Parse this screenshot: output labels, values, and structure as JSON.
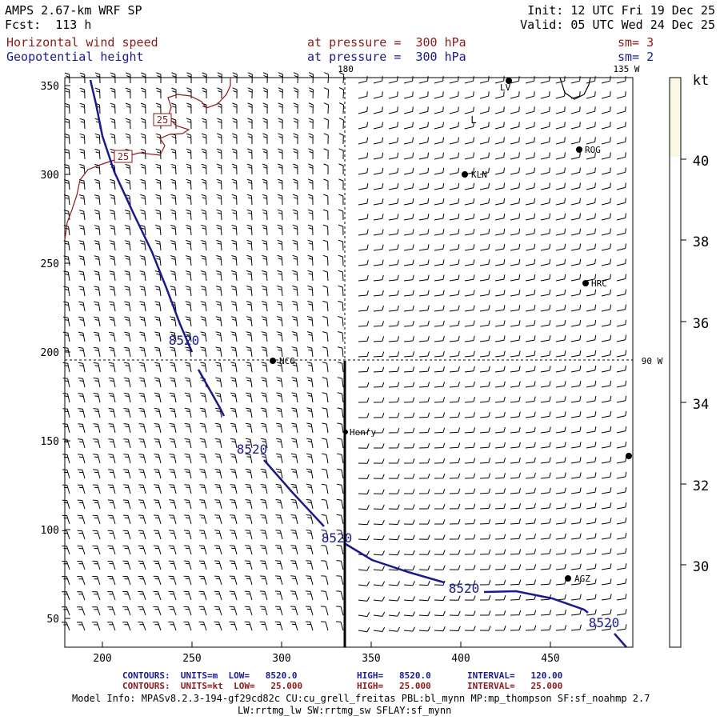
{
  "header": {
    "model_title": "AMPS 2.67-km WRF SP",
    "forecast": "Fcst:  113 h",
    "init": "Init: 12 UTC Fri 19 Dec 25",
    "valid": "Valid: 05 UTC Wed 24 Dec 25",
    "field1_name": "Horizontal wind speed",
    "field1_level": "at pressure =  300 hPa",
    "field1_sm": "sm= 3",
    "field2_name": "Geopotential height",
    "field2_level": "at pressure =  300 hPa",
    "field2_sm": "sm= 2"
  },
  "map": {
    "lon_labels": [
      "180",
      "135 W",
      "90 W"
    ],
    "y_ticks": [
      "350",
      "300",
      "250",
      "200",
      "150",
      "100",
      "50"
    ],
    "x_ticks": [
      "200",
      "250",
      "300",
      "350",
      "400",
      "450"
    ],
    "stations": [
      "LV",
      "ROG",
      "KLN",
      "HRC",
      "NCO",
      "Henry",
      "AGZ"
    ],
    "contour_labels_height": [
      "8520",
      "8520",
      "8520",
      "8520",
      "8520"
    ],
    "contour_labels_wind": [
      "25",
      "25"
    ],
    "low_marker": "L",
    "colors": {
      "height_contour": "#1a1a8c",
      "wind_contour": "#8b1a1a",
      "barb": "#000000",
      "colorbar_fill": "#fdf8e6"
    }
  },
  "colorbar": {
    "unit": "kt",
    "ticks": [
      "40",
      "38",
      "36",
      "34",
      "32",
      "30"
    ],
    "shaded_range": [
      40,
      42
    ]
  },
  "footer": {
    "line1_label": "CONTOURS:  UNITS=m  LOW=   8520.0",
    "line1_high": "HIGH=   8520.0",
    "line1_interval": "INTERVAL=   120.00",
    "line2_label": "CONTOURS:  UNITS=kt  LOW=   25.000",
    "line2_high": "HIGH=   25.000",
    "line2_interval": "INTERVAL=   25.000",
    "model_info": "Model Info: MPASv8.2.3-194-gf29cd82c CU:cu_grell_freitas PBL:bl_mynn MP:mp_thompson SF:sf_noahmp 2.7",
    "model_info2": "LW:rrtmg_lw SW:rrtmg_sw SFLAY:sf_mynn"
  }
}
